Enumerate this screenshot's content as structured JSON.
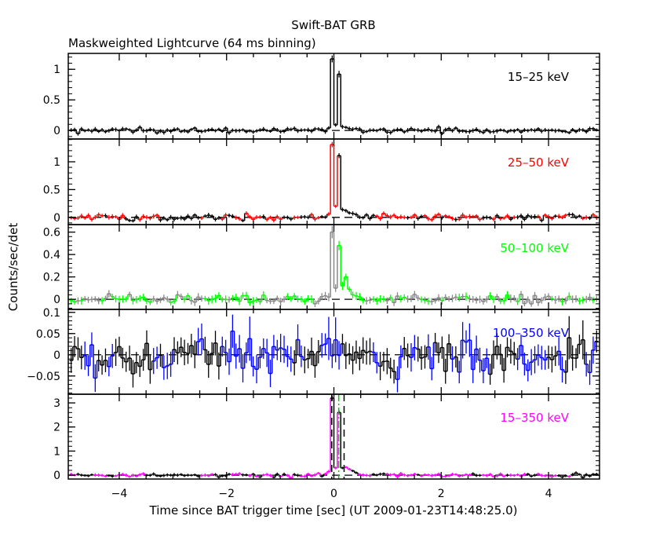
{
  "chart_data": {
    "type": "line",
    "title": "Swift-BAT GRB",
    "subtitle": "Maskweighted Lightcurve (64 ms binning)",
    "xlabel": "Time since BAT trigger time [sec] (UT 2009-01-23T14:48:25.0)",
    "ylabel": "Counts/sec/det",
    "xlim": [
      -4.95,
      4.95
    ],
    "bin_width": 0.064,
    "x_ticks": [
      -4,
      -2,
      0,
      2,
      4
    ],
    "x_tick_labels": [
      "−4",
      "−2",
      "0",
      "2",
      "4"
    ],
    "markers": {
      "t_start": -0.04,
      "t_peak": 0.09,
      "t_end": 0.19
    },
    "panels": [
      {
        "label": "15–25 keV",
        "color": "#000000",
        "ylim": [
          -0.14,
          1.26
        ],
        "y_ticks": [
          0,
          0.5,
          1
        ],
        "y_tick_labels": [
          "0",
          "0.5",
          "1"
        ],
        "background_rms": 0.02,
        "err": 0.03,
        "peak_start": -0.128,
        "peak_values": [
          0.04,
          1.17,
          0.09,
          0.92,
          0.06,
          0.05,
          0.03,
          0.02
        ]
      },
      {
        "label": "25–50 keV",
        "color": "#ff0000",
        "ylim": [
          -0.13,
          1.41
        ],
        "y_ticks": [
          0,
          0.5,
          1
        ],
        "y_tick_labels": [
          "0",
          "0.5",
          "1"
        ],
        "background_rms": 0.025,
        "err": 0.035,
        "peak_start": -0.128,
        "peak_values": [
          0.06,
          1.31,
          0.2,
          1.11,
          0.14,
          0.12,
          0.08,
          0.07,
          0.05
        ]
      },
      {
        "label": "50–100 keV",
        "color": "#00ff00",
        "ylim": [
          -0.09,
          0.667
        ],
        "y_ticks": [
          0,
          0.2,
          0.4,
          0.6
        ],
        "y_tick_labels": [
          "0",
          "0.2",
          "0.4",
          "0.6"
        ],
        "background_rms": 0.018,
        "err": 0.03,
        "peak_start": -0.128,
        "peak_values": [
          0.02,
          0.6,
          0.1,
          0.48,
          0.12,
          0.2,
          0.09,
          0.04,
          0.03
        ]
      },
      {
        "label": "100–350 keV",
        "color": "#0000ff",
        "ylim": [
          -0.093,
          0.107
        ],
        "y_ticks": [
          -0.05,
          0,
          0.05,
          0.1
        ],
        "y_tick_labels": [
          "−0.05",
          "0",
          "0.05",
          "0.1"
        ],
        "background_rms": 0.022,
        "err": 0.028,
        "peak_start": -0.128,
        "peak_values": []
      },
      {
        "label": "15–350 keV",
        "color": "#ff00ff",
        "ylim": [
          -0.16,
          3.36
        ],
        "y_ticks": [
          0,
          1,
          2,
          3
        ],
        "y_tick_labels": [
          "0",
          "1",
          "2",
          "3"
        ],
        "background_rms": 0.04,
        "err": 0.06,
        "peak_start": -0.128,
        "peak_values": [
          0.15,
          3.2,
          0.3,
          2.6,
          0.3,
          0.33,
          0.25,
          0.18,
          0.1
        ]
      }
    ]
  }
}
